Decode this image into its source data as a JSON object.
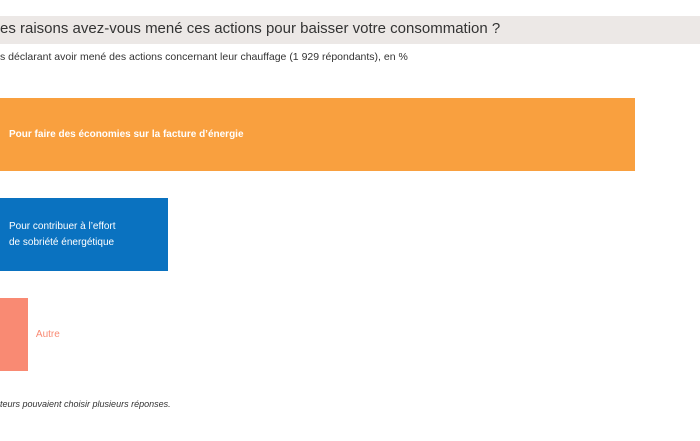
{
  "header": {
    "title": "es raisons avez-vous mené ces actions pour baisser votre consommation ?",
    "subtitle": "s déclarant avoir mené des actions concernant leur chauffage (1 929  répondants), en %"
  },
  "footnote": "teurs pouvaient choisir plusieurs réponses.",
  "chart_data": {
    "type": "bar",
    "orientation": "horizontal",
    "categories": [
      [
        "Pour faire des économies sur la facture d’énergie"
      ],
      [
        "Pour contribuer à l’effort",
        "de sobriété énergétique"
      ],
      [
        "Autre"
      ]
    ],
    "values": [
      91,
      24,
      4
    ],
    "xlim": [
      0,
      100
    ],
    "colors": [
      "#f9a03f",
      "#0a72c0",
      "#f98a73"
    ],
    "label_colors": [
      "#ffffff",
      "#ffffff",
      "#f98a73"
    ],
    "grid": false,
    "legend": "none"
  }
}
